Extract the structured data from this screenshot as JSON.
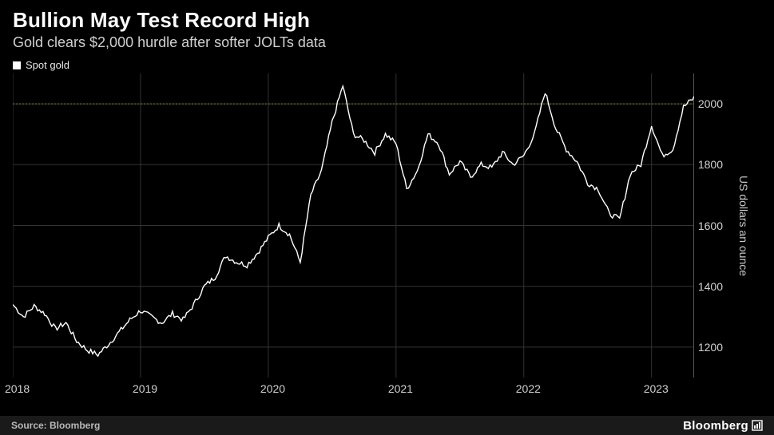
{
  "header": {
    "title": "Bullion May Test Record High",
    "subtitle": "Gold clears $2,000 hurdle after softer JOLTs data"
  },
  "legend": {
    "label": "Spot gold"
  },
  "chart": {
    "type": "line",
    "background_color": "#000000",
    "grid_color": "#333333",
    "series_color": "#ffffff",
    "reference_line_color": "#6b8e23",
    "reference_value": 2000,
    "ylim": [
      1100,
      2100
    ],
    "ytick_step": 200,
    "yticks": [
      1200,
      1400,
      1600,
      1800,
      2000
    ],
    "yaxis_label": "US dollars an ounce",
    "xticks": [
      "2018",
      "2019",
      "2020",
      "2021",
      "2022",
      "2023"
    ],
    "x_range": [
      0,
      64
    ],
    "line_width": 1.4,
    "label_fontsize": 14,
    "data": [
      [
        0,
        1340
      ],
      [
        1,
        1300
      ],
      [
        2,
        1335
      ],
      [
        3,
        1310
      ],
      [
        4,
        1260
      ],
      [
        5,
        1280
      ],
      [
        6,
        1220
      ],
      [
        7,
        1190
      ],
      [
        8,
        1175
      ],
      [
        9,
        1210
      ],
      [
        10,
        1250
      ],
      [
        11,
        1290
      ],
      [
        12,
        1320
      ],
      [
        13,
        1300
      ],
      [
        14,
        1280
      ],
      [
        15,
        1310
      ],
      [
        16,
        1290
      ],
      [
        17,
        1340
      ],
      [
        18,
        1400
      ],
      [
        19,
        1430
      ],
      [
        20,
        1500
      ],
      [
        21,
        1480
      ],
      [
        22,
        1470
      ],
      [
        23,
        1510
      ],
      [
        24,
        1560
      ],
      [
        25,
        1600
      ],
      [
        26,
        1570
      ],
      [
        27,
        1480
      ],
      [
        28,
        1700
      ],
      [
        29,
        1780
      ],
      [
        30,
        1940
      ],
      [
        31,
        2060
      ],
      [
        32,
        1900
      ],
      [
        33,
        1880
      ],
      [
        34,
        1840
      ],
      [
        35,
        1900
      ],
      [
        36,
        1870
      ],
      [
        37,
        1720
      ],
      [
        38,
        1780
      ],
      [
        39,
        1900
      ],
      [
        40,
        1870
      ],
      [
        41,
        1770
      ],
      [
        42,
        1810
      ],
      [
        43,
        1760
      ],
      [
        44,
        1800
      ],
      [
        45,
        1790
      ],
      [
        46,
        1840
      ],
      [
        47,
        1800
      ],
      [
        48,
        1830
      ],
      [
        49,
        1900
      ],
      [
        50,
        2040
      ],
      [
        51,
        1920
      ],
      [
        52,
        1850
      ],
      [
        53,
        1810
      ],
      [
        54,
        1740
      ],
      [
        55,
        1720
      ],
      [
        56,
        1640
      ],
      [
        57,
        1620
      ],
      [
        58,
        1770
      ],
      [
        59,
        1800
      ],
      [
        60,
        1930
      ],
      [
        61,
        1830
      ],
      [
        62,
        1850
      ],
      [
        63,
        1990
      ],
      [
        64,
        2020
      ]
    ]
  },
  "footer": {
    "source": "Source: Bloomberg",
    "brand": "Bloomberg"
  }
}
